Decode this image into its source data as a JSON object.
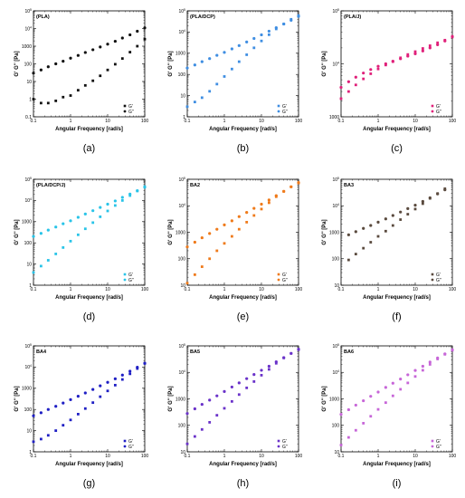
{
  "chart_data": [
    {
      "id": "a",
      "type": "scatter",
      "panel_label": "(a)",
      "tag": "(PLA)",
      "xlabel": "Angular Frequency [rad/s]",
      "ylabel": "G' G'' [Pa]",
      "xscale": "log",
      "yscale": "log",
      "xlim": [
        0.1,
        100
      ],
      "ylim": [
        0.1,
        100000
      ],
      "xticks": [
        0.1,
        1,
        10,
        100
      ],
      "yticks": [
        0.1,
        1,
        10,
        100,
        1000,
        10000,
        100000
      ],
      "legend": "bottom-right",
      "colors": {
        "series1": "#111111",
        "series2": "#111111"
      },
      "series": [
        {
          "name": "G'",
          "x": [
            0.1,
            0.16,
            0.25,
            0.4,
            0.63,
            1,
            1.6,
            2.5,
            4,
            6.3,
            10,
            16,
            25,
            40,
            63,
            100
          ],
          "y": [
            1,
            0.6,
            0.6,
            0.8,
            1.3,
            1.6,
            3.2,
            6,
            11,
            21,
            45,
            95,
            200,
            460,
            1000,
            2500
          ]
        },
        {
          "name": "G''",
          "x": [
            0.1,
            0.16,
            0.25,
            0.4,
            0.63,
            1,
            1.6,
            2.5,
            4,
            6.3,
            10,
            16,
            25,
            40,
            63,
            100
          ],
          "y": [
            30,
            45,
            68,
            100,
            140,
            210,
            300,
            440,
            630,
            900,
            1300,
            1900,
            2900,
            4400,
            7000,
            11000
          ]
        }
      ]
    },
    {
      "id": "b",
      "type": "scatter",
      "panel_label": "(b)",
      "tag": "(PLA/DCP)",
      "xlabel": "Angular Frequency [rad/s]",
      "ylabel": "G' G'' [Pa]",
      "xscale": "log",
      "yscale": "log",
      "xlim": [
        0.1,
        100
      ],
      "ylim": [
        1,
        100000
      ],
      "xticks": [
        0.1,
        1,
        10,
        100
      ],
      "yticks": [
        1,
        10,
        100,
        1000,
        10000,
        100000
      ],
      "legend": "bottom-right",
      "colors": {
        "series1": "#3f8ee2",
        "series2": "#3f8ee2"
      },
      "series": [
        {
          "name": "G'",
          "x": [
            0.1,
            0.16,
            0.25,
            0.4,
            0.63,
            1,
            1.6,
            2.5,
            4,
            6.3,
            10,
            16,
            25,
            40,
            63,
            100
          ],
          "y": [
            3,
            5,
            8,
            16,
            35,
            80,
            180,
            400,
            850,
            1800,
            3800,
            7500,
            14000,
            24000,
            40000,
            60000
          ]
        },
        {
          "name": "G''",
          "x": [
            0.1,
            0.16,
            0.25,
            0.4,
            0.63,
            1,
            1.6,
            2.5,
            4,
            6.3,
            10,
            16,
            25,
            40,
            63,
            100
          ],
          "y": [
            200,
            280,
            400,
            560,
            800,
            1100,
            1600,
            2300,
            3400,
            5000,
            7400,
            11000,
            16000,
            24000,
            36000,
            55000
          ]
        }
      ]
    },
    {
      "id": "c",
      "type": "scatter",
      "panel_label": "(c)",
      "tag": "(PLA/J)",
      "xlabel": "Angular Frequency [rad/s]",
      "ylabel": "G' G'' [Pa]",
      "xscale": "log",
      "yscale": "log",
      "xlim": [
        0.1,
        100
      ],
      "ylim": [
        1000,
        100000
      ],
      "xticks": [
        0.1,
        1,
        10,
        100
      ],
      "yticks": [
        1000,
        10000,
        100000
      ],
      "legend": "bottom-right",
      "colors": {
        "series1": "#e0207a",
        "series2": "#e0207a"
      },
      "series": [
        {
          "name": "G'",
          "x": [
            0.1,
            0.16,
            0.25,
            0.4,
            0.63,
            1,
            1.6,
            2.5,
            4,
            6.3,
            10,
            16,
            25,
            40,
            63,
            100
          ],
          "y": [
            2200,
            3000,
            4000,
            5200,
            6500,
            8000,
            9500,
            11000,
            13000,
            15000,
            17000,
            19500,
            22000,
            25000,
            28000,
            32000
          ]
        },
        {
          "name": "G''",
          "x": [
            0.1,
            0.16,
            0.25,
            0.4,
            0.63,
            1,
            1.6,
            2.5,
            4,
            6.3,
            10,
            16,
            25,
            40,
            63,
            100
          ],
          "y": [
            3600,
            4600,
            5600,
            6700,
            7800,
            9000,
            10000,
            11200,
            12500,
            14000,
            15500,
            17500,
            20000,
            23000,
            27000,
            33000
          ]
        }
      ]
    },
    {
      "id": "d",
      "type": "scatter",
      "panel_label": "(d)",
      "tag": "(PLA/DCP/J)",
      "xlabel": "Angular Frequency [rad/s]",
      "ylabel": "G' G'' [Pa]",
      "xscale": "log",
      "yscale": "log",
      "xlim": [
        0.1,
        100
      ],
      "ylim": [
        1,
        100000
      ],
      "xticks": [
        0.1,
        1,
        10,
        100
      ],
      "yticks": [
        1,
        10,
        100,
        1000,
        10000,
        100000
      ],
      "legend": "bottom-right",
      "colors": {
        "series1": "#29c4e8",
        "series2": "#29c4e8"
      },
      "series": [
        {
          "name": "G'",
          "x": [
            0.1,
            0.16,
            0.25,
            0.4,
            0.63,
            1,
            1.6,
            2.5,
            4,
            6.3,
            10,
            16,
            25,
            40,
            63,
            100
          ],
          "y": [
            4,
            8,
            15,
            30,
            60,
            120,
            240,
            460,
            900,
            1700,
            3200,
            5800,
            10000,
            17000,
            28000,
            45000
          ]
        },
        {
          "name": "G''",
          "x": [
            0.1,
            0.16,
            0.25,
            0.4,
            0.63,
            1,
            1.6,
            2.5,
            4,
            6.3,
            10,
            16,
            25,
            40,
            63,
            100
          ],
          "y": [
            200,
            280,
            400,
            560,
            800,
            1100,
            1600,
            2300,
            3300,
            4700,
            6700,
            9500,
            14000,
            20000,
            29000,
            42000
          ]
        }
      ]
    },
    {
      "id": "e",
      "type": "scatter",
      "panel_label": "(e)",
      "tag": "BA2",
      "xlabel": "Angular Frequency [rad/s]",
      "ylabel": "G' G'' [Pa]",
      "xscale": "log",
      "yscale": "log",
      "xlim": [
        0.1,
        100
      ],
      "ylim": [
        10,
        100000
      ],
      "xticks": [
        0.1,
        1,
        10,
        100
      ],
      "yticks": [
        10,
        100,
        1000,
        10000,
        100000
      ],
      "legend": "bottom-right",
      "colors": {
        "series1": "#ef7a1a",
        "series2": "#ef7a1a"
      },
      "series": [
        {
          "name": "G'",
          "x": [
            0.1,
            0.16,
            0.25,
            0.4,
            0.63,
            1,
            1.6,
            2.5,
            4,
            6.3,
            10,
            16,
            25,
            40,
            63,
            100
          ],
          "y": [
            12,
            25,
            50,
            100,
            200,
            380,
            700,
            1300,
            2400,
            4300,
            7500,
            13000,
            22000,
            35000,
            52000,
            72000
          ]
        },
        {
          "name": "G''",
          "x": [
            0.1,
            0.16,
            0.25,
            0.4,
            0.63,
            1,
            1.6,
            2.5,
            4,
            6.3,
            10,
            16,
            25,
            40,
            63,
            100
          ],
          "y": [
            280,
            420,
            620,
            900,
            1300,
            1900,
            2700,
            3900,
            5600,
            8000,
            11500,
            16500,
            24000,
            35000,
            52000,
            75000
          ]
        }
      ]
    },
    {
      "id": "f",
      "type": "scatter",
      "panel_label": "(f)",
      "tag": "BA3",
      "xlabel": "Angular Frequency [rad/s]",
      "ylabel": "G' G'' [Pa]",
      "xscale": "log",
      "yscale": "log",
      "xlim": [
        0.1,
        100
      ],
      "ylim": [
        10,
        100000
      ],
      "xticks": [
        0.1,
        1,
        10,
        100
      ],
      "yticks": [
        10,
        100,
        1000,
        10000,
        100000
      ],
      "legend": "bottom-right",
      "colors": {
        "series1": "#5a4a3e",
        "series2": "#5a4a3e"
      },
      "series": [
        {
          "name": "G'",
          "x": [
            0.16,
            0.25,
            0.4,
            0.63,
            1,
            1.6,
            2.5,
            4,
            6.3,
            10,
            16,
            25,
            40,
            63
          ],
          "y": [
            90,
            150,
            250,
            420,
            700,
            1100,
            1800,
            3000,
            4800,
            7500,
            12000,
            19000,
            29000,
            44000
          ]
        },
        {
          "name": "G''",
          "x": [
            0.16,
            0.25,
            0.4,
            0.63,
            1,
            1.6,
            2.5,
            4,
            6.3,
            10,
            16,
            25,
            40,
            63
          ],
          "y": [
            800,
            1050,
            1400,
            1800,
            2400,
            3200,
            4300,
            5800,
            7800,
            10500,
            14500,
            20000,
            28000,
            40000
          ]
        }
      ]
    },
    {
      "id": "g",
      "type": "scatter",
      "panel_label": "(g)",
      "tag": "BA4",
      "xlabel": "Angular Frequency [rad/s]",
      "ylabel": "G' G'' [Pa]",
      "xscale": "log",
      "yscale": "log",
      "xlim": [
        0.1,
        100
      ],
      "ylim": [
        1,
        100000
      ],
      "xticks": [
        0.1,
        1,
        10,
        100
      ],
      "yticks": [
        1,
        10,
        100,
        1000,
        10000,
        100000
      ],
      "legend": "bottom-right",
      "colors": {
        "series1": "#1f1fc4",
        "series2": "#1f1fc4"
      },
      "series": [
        {
          "name": "G'",
          "x": [
            0.1,
            0.16,
            0.25,
            0.4,
            0.63,
            1,
            1.6,
            2.5,
            4,
            6.3,
            10,
            16,
            25,
            40,
            63,
            100
          ],
          "y": [
            3,
            4,
            6,
            10,
            18,
            32,
            60,
            110,
            210,
            400,
            750,
            1400,
            2600,
            4800,
            8500,
            15000
          ]
        },
        {
          "name": "G''",
          "x": [
            0.1,
            0.16,
            0.25,
            0.4,
            0.63,
            1,
            1.6,
            2.5,
            4,
            6.3,
            10,
            16,
            25,
            40,
            63,
            100
          ],
          "y": [
            50,
            70,
            100,
            140,
            200,
            290,
            420,
            600,
            880,
            1300,
            1900,
            2800,
            4200,
            6400,
            9800,
            15000
          ]
        }
      ]
    },
    {
      "id": "h",
      "type": "scatter",
      "panel_label": "(h)",
      "tag": "BA5",
      "xlabel": "Angular Frequency [rad/s]",
      "ylabel": "G' G'' [Pa]",
      "xscale": "log",
      "yscale": "log",
      "xlim": [
        0.1,
        100
      ],
      "ylim": [
        10,
        100000
      ],
      "xticks": [
        0.1,
        1,
        10,
        100
      ],
      "yticks": [
        10,
        100,
        1000,
        10000,
        100000
      ],
      "legend": "bottom-right",
      "colors": {
        "series1": "#6a32c9",
        "series2": "#6a32c9"
      },
      "series": [
        {
          "name": "G'",
          "x": [
            0.1,
            0.16,
            0.25,
            0.4,
            0.63,
            1,
            1.6,
            2.5,
            4,
            6.3,
            10,
            16,
            25,
            40,
            63,
            100
          ],
          "y": [
            20,
            38,
            70,
            130,
            240,
            440,
            800,
            1450,
            2600,
            4500,
            7800,
            13000,
            22000,
            35000,
            52000,
            72000
          ]
        },
        {
          "name": "G''",
          "x": [
            0.1,
            0.16,
            0.25,
            0.4,
            0.63,
            1,
            1.6,
            2.5,
            4,
            6.3,
            10,
            16,
            25,
            40,
            63,
            100
          ],
          "y": [
            280,
            420,
            620,
            900,
            1300,
            1900,
            2800,
            4000,
            5800,
            8300,
            12000,
            17000,
            25000,
            36000,
            52000,
            75000
          ]
        }
      ]
    },
    {
      "id": "i",
      "type": "scatter",
      "panel_label": "(i)",
      "tag": "BA6",
      "xlabel": "Angular Frequency [rad/s]",
      "ylabel": "G' G'' [Pa]",
      "xscale": "log",
      "yscale": "log",
      "xlim": [
        0.1,
        100
      ],
      "ylim": [
        10,
        100000
      ],
      "xticks": [
        0.1,
        1,
        10,
        100
      ],
      "yticks": [
        10,
        100,
        1000,
        10000,
        100000
      ],
      "legend": "bottom-right",
      "colors": {
        "series1": "#c766d8",
        "series2": "#c766d8"
      },
      "series": [
        {
          "name": "G'",
          "x": [
            0.1,
            0.16,
            0.25,
            0.4,
            0.63,
            1,
            1.6,
            2.5,
            4,
            6.3,
            10,
            16,
            25,
            40,
            63,
            100
          ],
          "y": [
            18,
            35,
            65,
            120,
            220,
            400,
            720,
            1300,
            2300,
            4000,
            7000,
            12000,
            20000,
            32000,
            48000,
            68000
          ]
        },
        {
          "name": "G''",
          "x": [
            0.1,
            0.16,
            0.25,
            0.4,
            0.63,
            1,
            1.6,
            2.5,
            4,
            6.3,
            10,
            16,
            25,
            40,
            63,
            100
          ],
          "y": [
            260,
            390,
            580,
            850,
            1250,
            1800,
            2700,
            3900,
            5600,
            8100,
            11800,
            17000,
            24500,
            35000,
            50000,
            72000
          ]
        }
      ]
    }
  ]
}
